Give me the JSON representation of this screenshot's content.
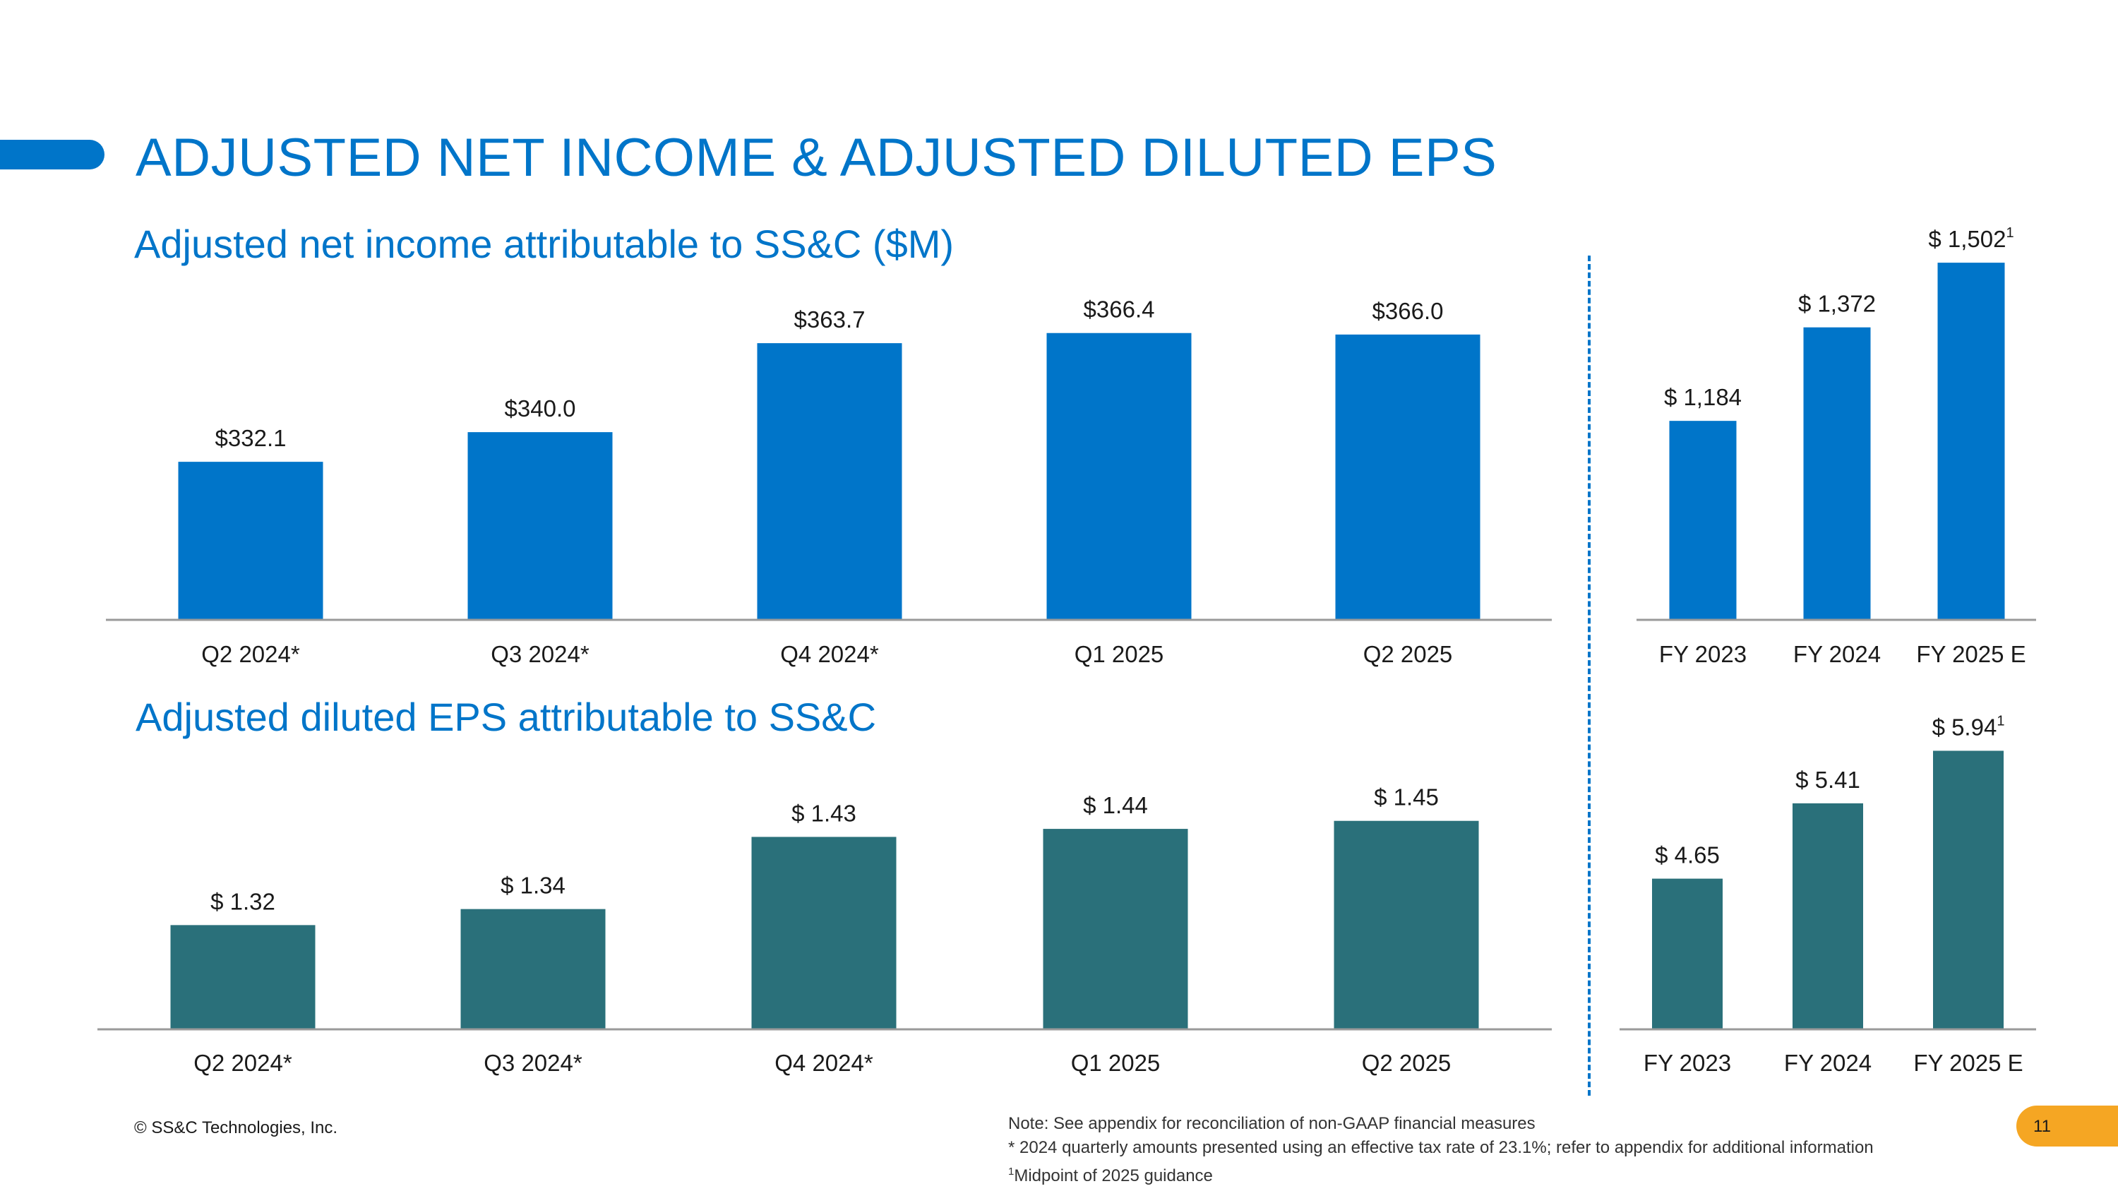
{
  "title": "ADJUSTED NET INCOME & ADJUSTED DILUTED EPS",
  "colors": {
    "accent": "#0075c9",
    "teal": "#2a707a",
    "badge": "#f5a623"
  },
  "footer": {
    "copyright": "© SS&C Technologies, Inc.",
    "note1": "Note: See appendix for reconciliation of non-GAAP financial measures",
    "note2": "* 2024 quarterly amounts presented using an effective tax rate of 23.1%; refer to appendix for additional information",
    "note3_sup": "1",
    "note3": "Midpoint of 2025 guidance",
    "page_number": "11"
  },
  "chart_data": [
    {
      "id": "ni-quarterly",
      "type": "bar",
      "title": "Adjusted net income attributable to SS&C ($M)",
      "categories": [
        "Q2 2024*",
        "Q3 2024*",
        "Q4 2024*",
        "Q1 2025",
        "Q2 2025"
      ],
      "values": [
        332.1,
        340.0,
        363.7,
        366.4,
        366.0
      ],
      "labels": [
        "$332.1",
        "$340.0",
        "$363.7",
        "$366.4",
        "$366.0"
      ],
      "sups": [
        "",
        "",
        "",
        "",
        ""
      ],
      "ylim": [
        290,
        375
      ],
      "color": "#0075c9"
    },
    {
      "id": "ni-annual",
      "type": "bar",
      "title": "",
      "categories": [
        "FY 2023",
        "FY 2024",
        "FY 2025 E"
      ],
      "values": [
        1184,
        1372,
        1502
      ],
      "labels": [
        "$ 1,184",
        "$ 1,372",
        "$ 1,502"
      ],
      "sups": [
        "",
        "",
        "1"
      ],
      "ylim": [
        784,
        1522
      ],
      "color": "#0075c9"
    },
    {
      "id": "eps-quarterly",
      "type": "bar",
      "title": "Adjusted diluted EPS attributable to SS&C",
      "categories": [
        "Q2 2024*",
        "Q3 2024*",
        "Q4 2024*",
        "Q1 2025",
        "Q2 2025"
      ],
      "values": [
        1.32,
        1.34,
        1.43,
        1.44,
        1.45
      ],
      "labels": [
        "$ 1.32",
        "$ 1.34",
        "$ 1.43",
        "$ 1.44",
        "$ 1.45"
      ],
      "sups": [
        "",
        "",
        "",
        "",
        ""
      ],
      "ylim": [
        1.19,
        1.47
      ],
      "color": "#2a707a"
    },
    {
      "id": "eps-annual",
      "type": "bar",
      "title": "",
      "categories": [
        "FY 2023",
        "FY 2024",
        "FY 2025 E"
      ],
      "values": [
        4.65,
        5.41,
        5.94
      ],
      "labels": [
        "$ 4.65",
        "$ 5.41",
        "$ 5.94"
      ],
      "sups": [
        "",
        "",
        "1"
      ],
      "ylim": [
        3.13,
        6.05
      ],
      "color": "#2a707a"
    }
  ]
}
